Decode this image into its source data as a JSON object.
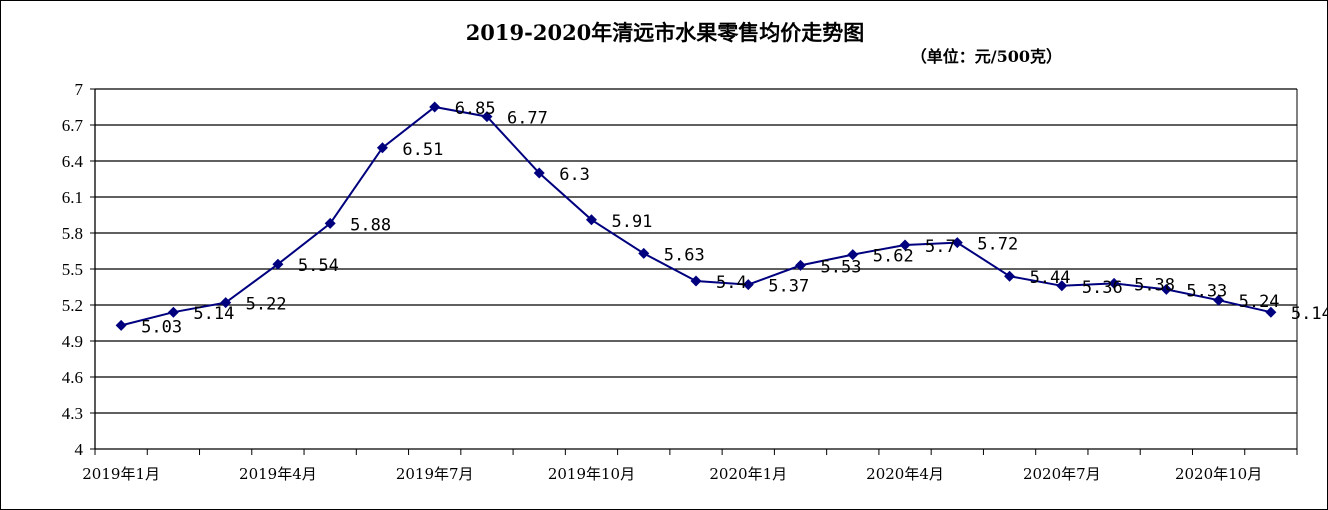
{
  "chart_data": {
    "type": "line",
    "title": "2019-2020年清远市水果零售均价走势图",
    "unit_note": "（单位：元/500克）",
    "ylim": [
      4,
      7
    ],
    "yticks": [
      "4",
      "4.3",
      "4.6",
      "4.9",
      "5.2",
      "5.5",
      "5.8",
      "6.1",
      "6.4",
      "6.7",
      "7"
    ],
    "ytick_values": [
      4,
      4.3,
      4.6,
      4.9,
      5.2,
      5.5,
      5.8,
      6.1,
      6.4,
      6.7,
      7
    ],
    "x": [
      "2019年1月",
      "2019年2月",
      "2019年3月",
      "2019年4月",
      "2019年5月",
      "2019年6月",
      "2019年7月",
      "2019年8月",
      "2019年9月",
      "2019年10月",
      "2019年11月",
      "2019年12月",
      "2020年1月",
      "2020年2月",
      "2020年3月",
      "2020年4月",
      "2020年5月",
      "2020年6月",
      "2020年7月",
      "2020年8月",
      "2020年9月",
      "2020年10月",
      "2020年11月"
    ],
    "xtick_labels": [
      {
        "index": 0,
        "label": "2019年1月"
      },
      {
        "index": 3,
        "label": "2019年4月"
      },
      {
        "index": 6,
        "label": "2019年7月"
      },
      {
        "index": 9,
        "label": "2019年10月"
      },
      {
        "index": 12,
        "label": "2020年1月"
      },
      {
        "index": 15,
        "label": "2020年4月"
      },
      {
        "index": 18,
        "label": "2020年7月"
      },
      {
        "index": 21,
        "label": "2020年10月"
      }
    ],
    "series": [
      {
        "values": [
          5.03,
          5.14,
          5.22,
          5.54,
          5.88,
          6.51,
          6.85,
          6.77,
          6.3,
          5.91,
          5.63,
          5.4,
          5.37,
          5.53,
          5.62,
          5.7,
          5.72,
          5.44,
          5.36,
          5.38,
          5.33,
          5.24,
          5.14
        ],
        "labels": [
          "5.03",
          "5.14",
          "5.22",
          "5.54",
          "5.88",
          "6.51",
          "6.85",
          "6.77",
          "6.3",
          "5.91",
          "5.63",
          "5.4",
          "5.37",
          "5.53",
          "5.62",
          "5.7",
          "5.72",
          "5.44",
          "5.36",
          "5.38",
          "5.33",
          "5.24",
          "5.14"
        ]
      }
    ],
    "grid": true,
    "colors": {
      "line": "#00007f",
      "marker": "#00007f",
      "grid": "#000000"
    }
  }
}
